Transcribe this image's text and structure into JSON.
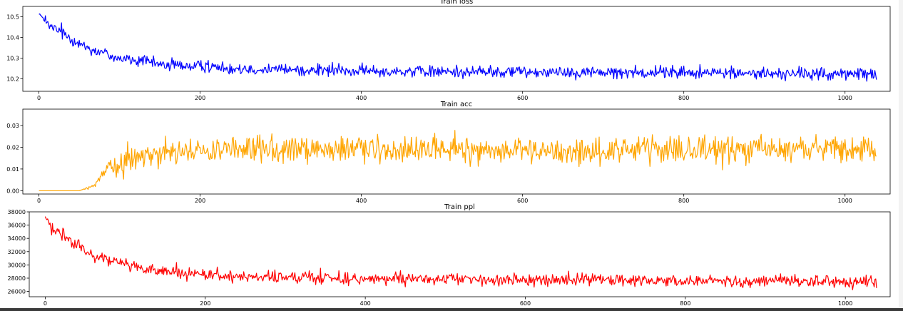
{
  "chart_data": [
    {
      "type": "line",
      "title": "Train loss",
      "color": "#0000ff",
      "xlim": [
        -20,
        1056
      ],
      "ylim": [
        10.14,
        10.55
      ],
      "xticks": [
        0,
        200,
        400,
        600,
        800,
        1000
      ],
      "yticks": [
        10.2,
        10.3,
        10.4,
        10.5
      ],
      "ytick_labels": [
        "10.2",
        "10.3",
        "10.4",
        "10.5"
      ],
      "n_points": 1040,
      "anchors_x": [
        0,
        10,
        30,
        60,
        100,
        150,
        200,
        300,
        400,
        500,
        600,
        700,
        800,
        900,
        1000,
        1040
      ],
      "anchors_y": [
        10.52,
        10.46,
        10.42,
        10.35,
        10.3,
        10.27,
        10.26,
        10.245,
        10.238,
        10.235,
        10.235,
        10.232,
        10.232,
        10.226,
        10.222,
        10.225
      ],
      "noise": 0.022,
      "x": [],
      "y": []
    },
    {
      "type": "line",
      "title": "Train acc",
      "color": "#ffa500",
      "xlim": [
        -20,
        1056
      ],
      "ylim": [
        -0.0015,
        0.0375
      ],
      "xticks": [
        0,
        200,
        400,
        600,
        800,
        1000
      ],
      "yticks": [
        0.0,
        0.01,
        0.02,
        0.03
      ],
      "ytick_labels": [
        "0.00",
        "0.01",
        "0.02",
        "0.03"
      ],
      "n_points": 1040,
      "anchors_x": [
        0,
        50,
        65,
        80,
        100,
        120,
        150,
        200,
        300,
        400,
        500,
        600,
        700,
        800,
        900,
        1000,
        1040
      ],
      "anchors_y": [
        0.0,
        0.0,
        0.002,
        0.007,
        0.013,
        0.016,
        0.017,
        0.018,
        0.0185,
        0.019,
        0.019,
        0.018,
        0.018,
        0.0185,
        0.019,
        0.019,
        0.019
      ],
      "noise": 0.0045,
      "x": [],
      "y": []
    },
    {
      "type": "line",
      "title": "Train ppl",
      "color": "#ff0000",
      "xlim": [
        -20,
        1056
      ],
      "ylim": [
        25200,
        38000
      ],
      "xticks": [
        0,
        200,
        400,
        600,
        800,
        1000
      ],
      "yticks": [
        26000,
        28000,
        30000,
        32000,
        34000,
        36000,
        38000
      ],
      "ytick_labels": [
        "26000",
        "28000",
        "30000",
        "32000",
        "34000",
        "36000",
        "38000"
      ],
      "n_points": 1040,
      "anchors_x": [
        0,
        10,
        30,
        60,
        100,
        150,
        200,
        300,
        400,
        500,
        600,
        700,
        800,
        900,
        1000,
        1040
      ],
      "anchors_y": [
        37300,
        35200,
        33800,
        31500,
        30000,
        28900,
        28400,
        28100,
        27900,
        27850,
        27800,
        27750,
        27650,
        27550,
        27450,
        27500
      ],
      "noise": 650,
      "x": [],
      "y": []
    }
  ],
  "xtick_labels": [
    "0",
    "200",
    "400",
    "600",
    "800",
    "1000"
  ]
}
